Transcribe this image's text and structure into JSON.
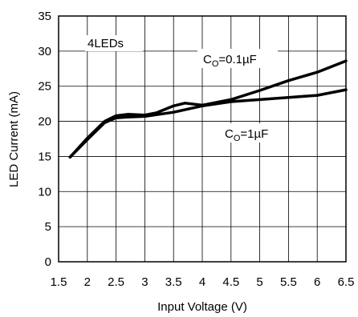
{
  "chart_data": {
    "type": "line",
    "title": "",
    "xlabel": "Input Voltage (V)",
    "ylabel": "LED Current (mA)",
    "xlim": [
      1.5,
      6.5
    ],
    "ylim": [
      0,
      35
    ],
    "x_ticks": [
      "1.5",
      "2",
      "2.5",
      "3",
      "3.5",
      "4",
      "4.5",
      "5",
      "5.5",
      "6",
      "6.5"
    ],
    "y_ticks": [
      "0",
      "5",
      "10",
      "15",
      "20",
      "25",
      "30",
      "35"
    ],
    "grid": true,
    "annotations": {
      "leds": "4LEDs",
      "co_prefix": "C",
      "co_sub": "O",
      "co_small_value": "=0.1µF",
      "co_large_value": "=1µF"
    },
    "series": [
      {
        "values": [
          [
            1.7,
            14.9
          ],
          [
            2.0,
            17.6
          ],
          [
            2.3,
            20.0
          ],
          [
            2.5,
            20.8
          ],
          [
            2.7,
            21.0
          ],
          [
            3.0,
            20.9
          ],
          [
            3.2,
            21.2
          ],
          [
            3.5,
            22.2
          ],
          [
            3.7,
            22.6
          ],
          [
            4.0,
            22.3
          ],
          [
            4.5,
            23.1
          ],
          [
            5.0,
            24.4
          ],
          [
            5.5,
            25.8
          ],
          [
            6.0,
            27.0
          ],
          [
            6.5,
            28.6
          ]
        ]
      },
      {
        "values": [
          [
            1.7,
            14.9
          ],
          [
            2.0,
            17.4
          ],
          [
            2.3,
            19.8
          ],
          [
            2.5,
            20.5
          ],
          [
            2.7,
            20.6
          ],
          [
            3.0,
            20.7
          ],
          [
            3.5,
            21.3
          ],
          [
            4.0,
            22.2
          ],
          [
            4.5,
            22.8
          ],
          [
            5.0,
            23.1
          ],
          [
            5.5,
            23.4
          ],
          [
            6.0,
            23.7
          ],
          [
            6.5,
            24.5
          ]
        ]
      }
    ]
  }
}
